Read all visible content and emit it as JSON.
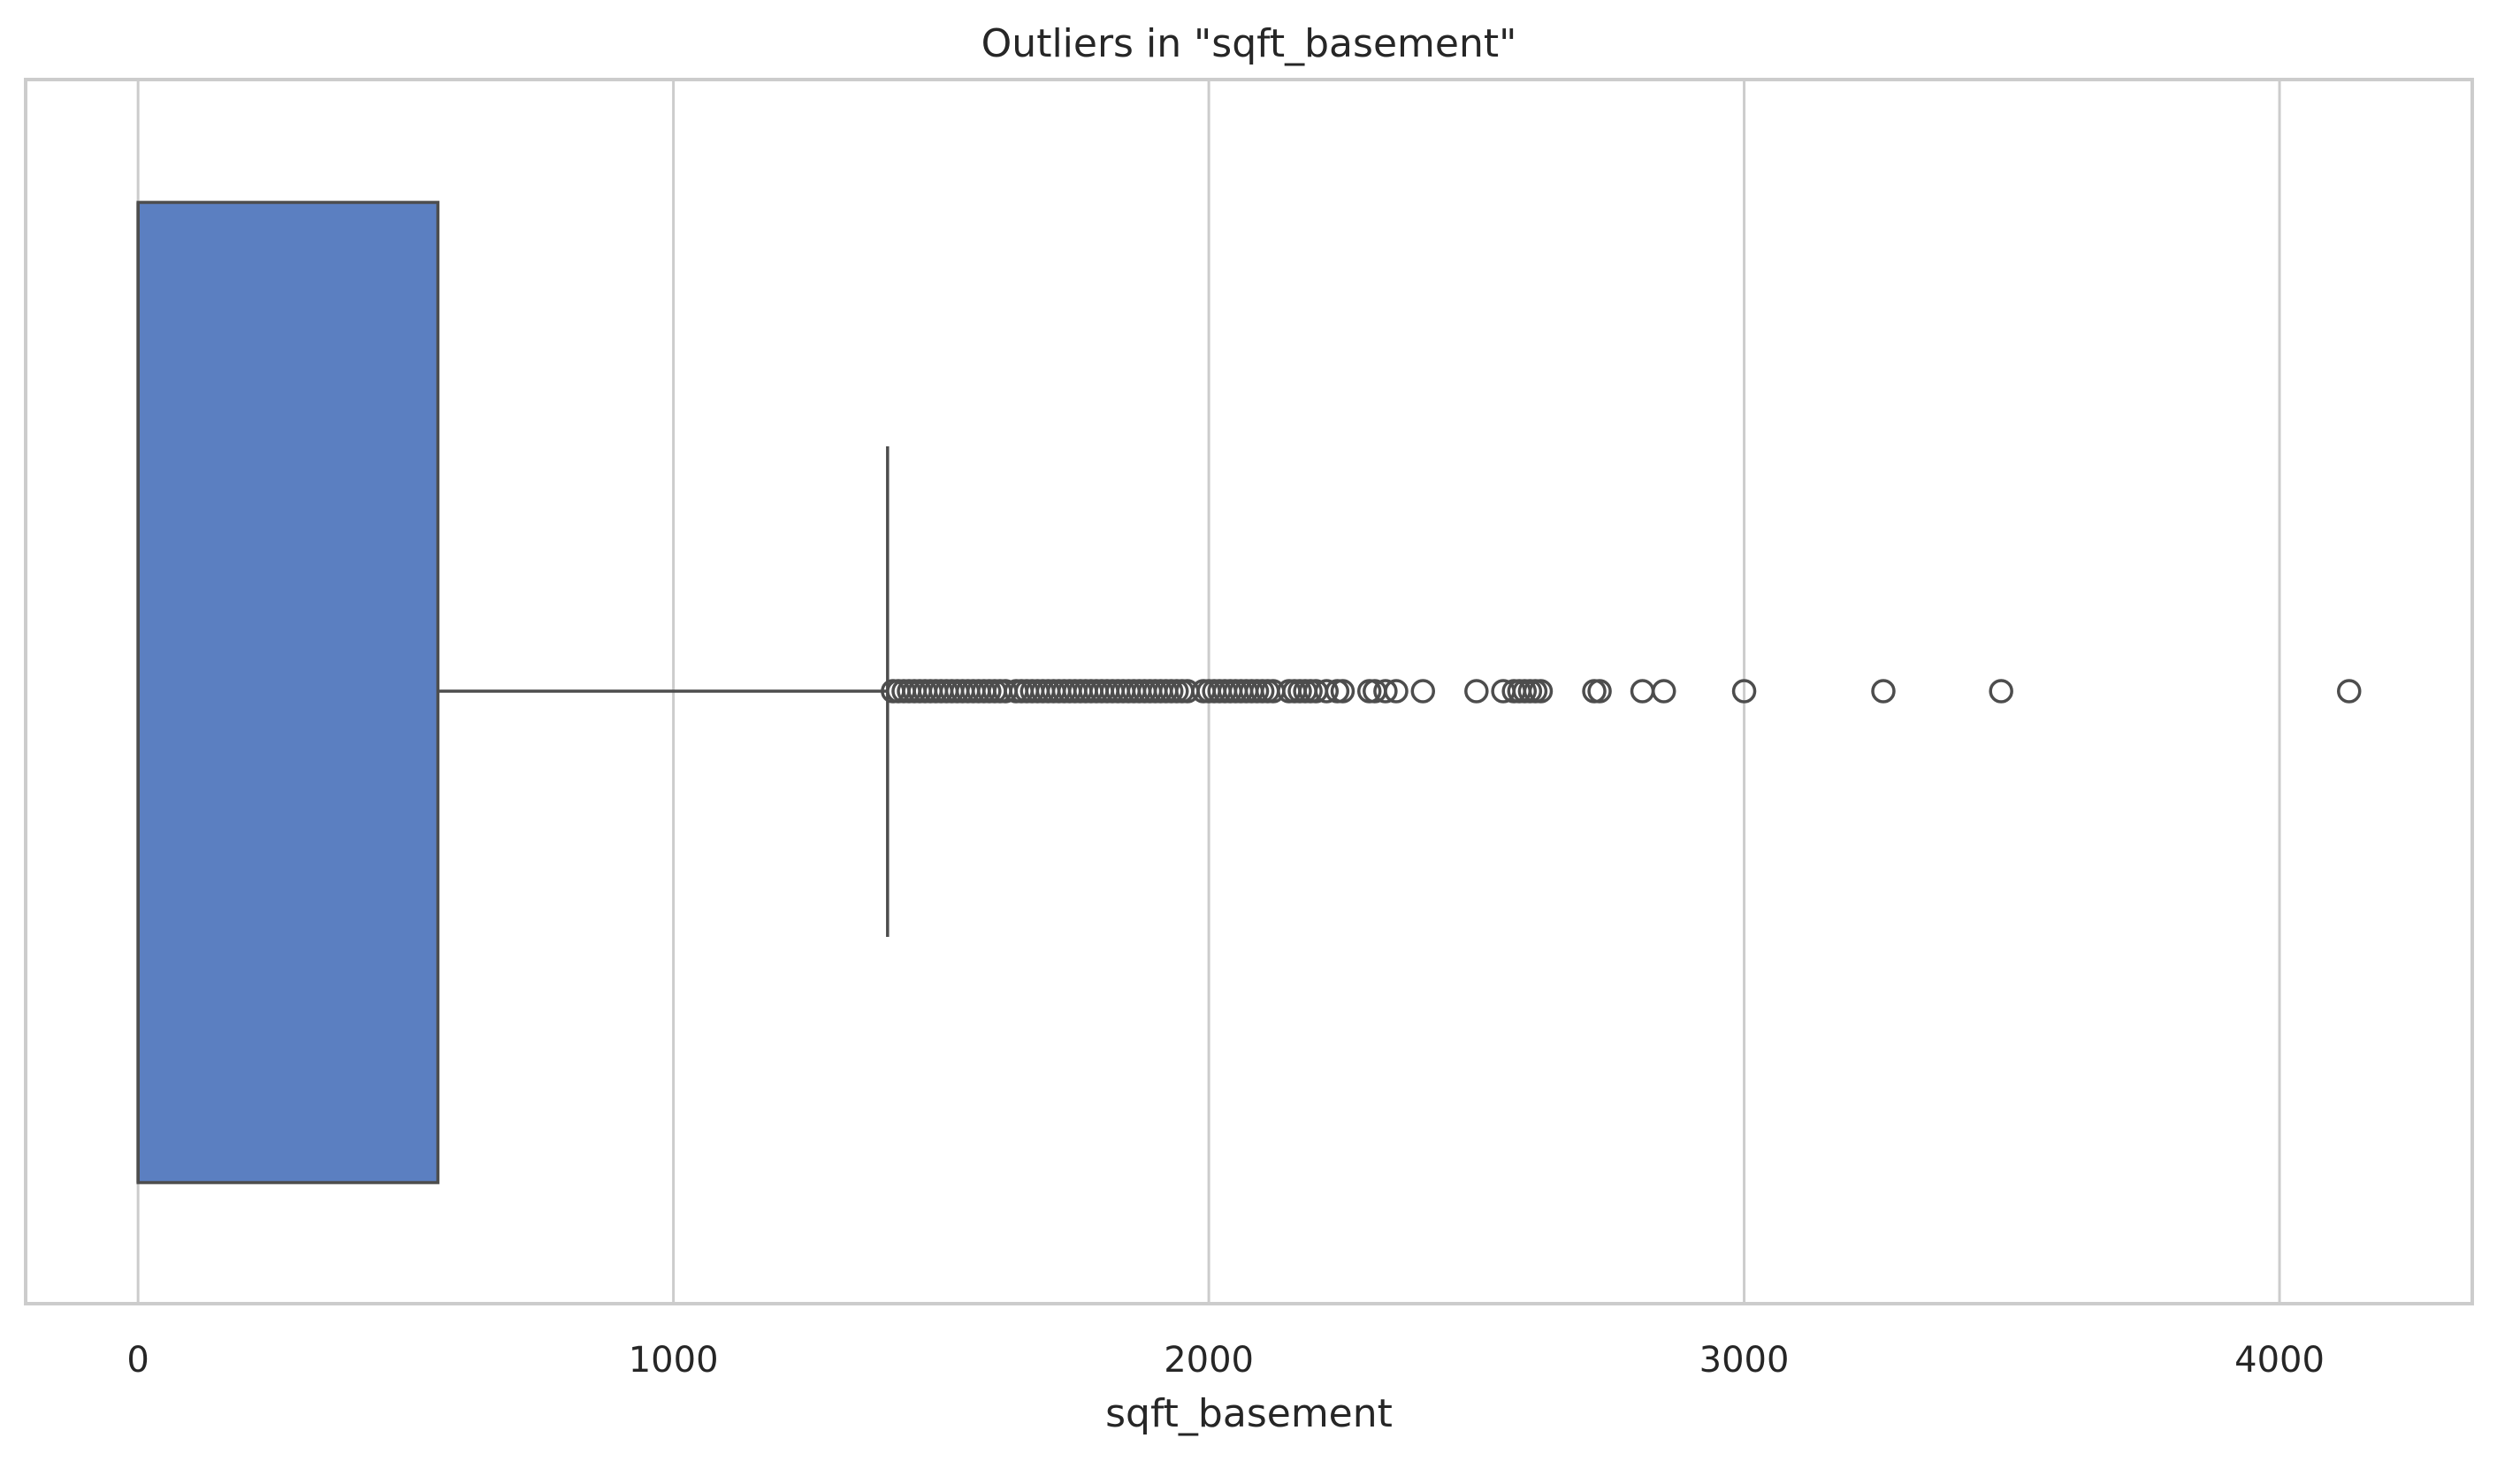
{
  "chart_data": {
    "type": "boxplot",
    "orientation": "horizontal",
    "title": "Outliers in \"sqft_basement\"",
    "xlabel": "sqft_basement",
    "ylabel": "",
    "xlim": [
      -210,
      4360
    ],
    "xticks": [
      0,
      1000,
      2000,
      3000,
      4000
    ],
    "xtick_labels": [
      "0",
      "1000",
      "2000",
      "3000",
      "4000"
    ],
    "grid": "vertical",
    "box": {
      "min": 0,
      "q1": 0,
      "median": 0,
      "q3": 560,
      "whisker_low": 0,
      "whisker_high": 1400,
      "color": "#5b7fc1",
      "edge_color": "#4d4d4d"
    },
    "outliers": [
      1410,
      1420,
      1430,
      1440,
      1450,
      1460,
      1470,
      1480,
      1490,
      1500,
      1510,
      1520,
      1530,
      1540,
      1550,
      1560,
      1570,
      1580,
      1590,
      1600,
      1610,
      1620,
      1640,
      1650,
      1660,
      1670,
      1680,
      1690,
      1700,
      1710,
      1720,
      1730,
      1740,
      1750,
      1760,
      1770,
      1780,
      1790,
      1800,
      1810,
      1820,
      1830,
      1840,
      1850,
      1860,
      1870,
      1880,
      1890,
      1900,
      1910,
      1920,
      1930,
      1940,
      1950,
      1960,
      1990,
      2000,
      2010,
      2020,
      2030,
      2040,
      2050,
      2060,
      2070,
      2080,
      2090,
      2100,
      2110,
      2120,
      2150,
      2160,
      2170,
      2180,
      2190,
      2200,
      2220,
      2240,
      2250,
      2300,
      2310,
      2330,
      2350,
      2400,
      2500,
      2550,
      2570,
      2580,
      2590,
      2600,
      2610,
      2620,
      2720,
      2730,
      2810,
      2850,
      3000,
      3260,
      3480,
      4130
    ]
  }
}
